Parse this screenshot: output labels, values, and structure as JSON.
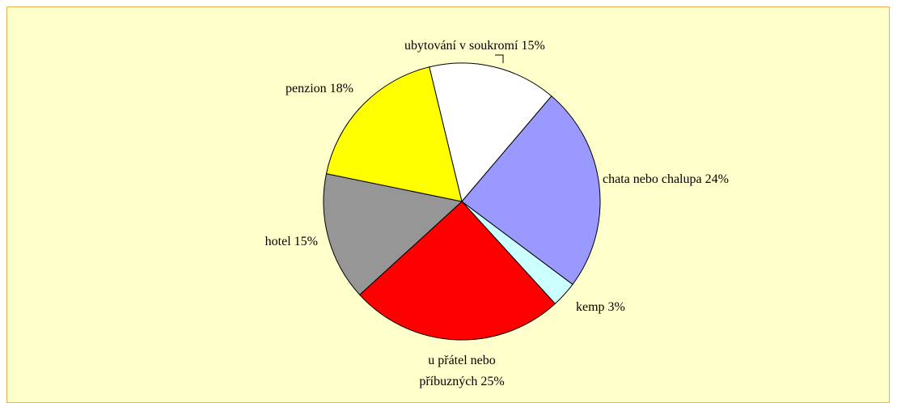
{
  "chart_data": {
    "type": "pie",
    "categories": [
      "ubytování v soukromí",
      "chata nebo chalupa",
      "kemp",
      "u přátel nebo příbuzných",
      "hotel",
      "penzion"
    ],
    "values": [
      15,
      24,
      3,
      25,
      15,
      18
    ],
    "value_labels": [
      "15%",
      "24%",
      "3%",
      "25%",
      "15%",
      "18%"
    ],
    "colors": [
      "#ffffff",
      "#9999ff",
      "#ccffff",
      "#ff0000",
      "#969696",
      "#ffff00"
    ]
  }
}
